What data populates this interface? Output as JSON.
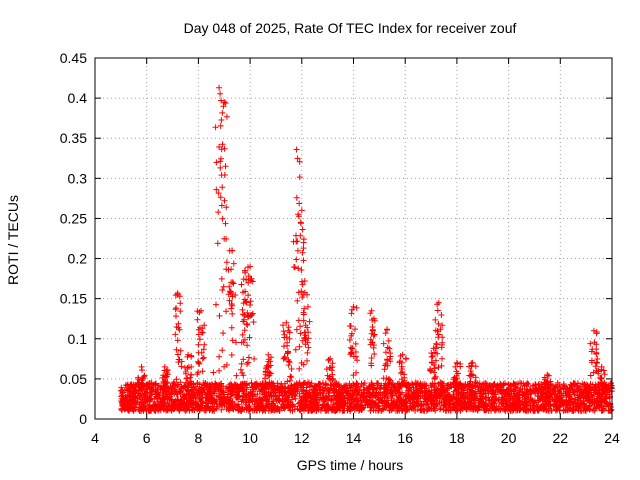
{
  "chart_data": {
    "type": "scatter",
    "title": "Day 048 of 2025, Rate Of TEC Index for receiver zouf",
    "xlabel": "GPS time / hours",
    "ylabel": "ROTI / TECUs",
    "xlim": [
      4,
      24
    ],
    "ylim": [
      0,
      0.45
    ],
    "x_ticks": [
      "4",
      "6",
      "8",
      "10",
      "12",
      "14",
      "16",
      "18",
      "20",
      "22",
      "24"
    ],
    "y_ticks": [
      "0",
      "0.05",
      "0.1",
      "0.15",
      "0.2",
      "0.25",
      "0.3",
      "0.35",
      "0.4",
      "0.45"
    ],
    "grid": true,
    "marker": "+",
    "color": "#ff0000",
    "data_start_hour": 5.0,
    "data_end_hour": 24.0,
    "baseline_band": [
      0.01,
      0.045
    ],
    "peaks": [
      {
        "x": 5.8,
        "y": 0.065
      },
      {
        "x": 6.7,
        "y": 0.065
      },
      {
        "x": 7.2,
        "y": 0.157
      },
      {
        "x": 7.6,
        "y": 0.08
      },
      {
        "x": 8.1,
        "y": 0.135
      },
      {
        "x": 8.8,
        "y": 0.413
      },
      {
        "x": 9.0,
        "y": 0.395
      },
      {
        "x": 9.3,
        "y": 0.21
      },
      {
        "x": 9.8,
        "y": 0.185
      },
      {
        "x": 10.0,
        "y": 0.19
      },
      {
        "x": 10.7,
        "y": 0.08
      },
      {
        "x": 11.4,
        "y": 0.12
      },
      {
        "x": 11.8,
        "y": 0.336
      },
      {
        "x": 12.0,
        "y": 0.26
      },
      {
        "x": 12.2,
        "y": 0.155
      },
      {
        "x": 13.1,
        "y": 0.075
      },
      {
        "x": 14.0,
        "y": 0.14
      },
      {
        "x": 14.7,
        "y": 0.135
      },
      {
        "x": 15.3,
        "y": 0.112
      },
      {
        "x": 15.9,
        "y": 0.08
      },
      {
        "x": 17.1,
        "y": 0.088
      },
      {
        "x": 17.3,
        "y": 0.145
      },
      {
        "x": 18.0,
        "y": 0.07
      },
      {
        "x": 18.6,
        "y": 0.07
      },
      {
        "x": 21.5,
        "y": 0.055
      },
      {
        "x": 23.3,
        "y": 0.11
      },
      {
        "x": 23.6,
        "y": 0.065
      }
    ]
  }
}
